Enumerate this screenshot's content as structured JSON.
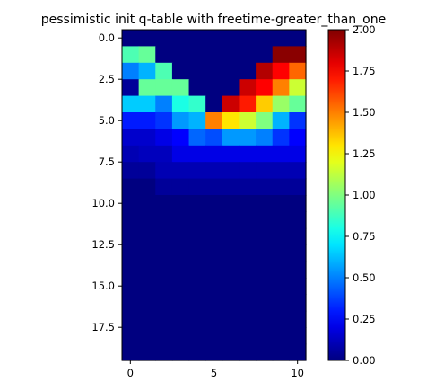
{
  "chart_data": {
    "type": "heatmap",
    "title": "pessimistic init q-table with freetime-greater_than_one",
    "xlabel": "",
    "ylabel": "",
    "colormap": "jet",
    "vmin": 0.0,
    "vmax": 2.0,
    "n_rows": 20,
    "n_cols": 11,
    "x_ticks": [
      0,
      5,
      10
    ],
    "x_tick_labels": [
      "0",
      "5",
      "10"
    ],
    "y_ticks": [
      0.0,
      2.5,
      5.0,
      7.5,
      10.0,
      12.5,
      15.0,
      17.5
    ],
    "y_tick_labels": [
      "0.0",
      "2.5",
      "5.0",
      "7.5",
      "10.0",
      "12.5",
      "15.0",
      "17.5"
    ],
    "colorbar_ticks": [
      0.0,
      0.25,
      0.5,
      0.75,
      1.0,
      1.25,
      1.5,
      1.75,
      2.0
    ],
    "colorbar_tick_labels": [
      "0.00",
      "0.25",
      "0.50",
      "0.75",
      "1.00",
      "1.25",
      "1.50",
      "1.75",
      "2.00"
    ],
    "values": [
      [
        0,
        0,
        0,
        0,
        0,
        0,
        0,
        0,
        0,
        0,
        0
      ],
      [
        0.9,
        0.95,
        0,
        0,
        0,
        0,
        0,
        0,
        0,
        1.98,
        1.98
      ],
      [
        0.5,
        0.6,
        0.9,
        0,
        0,
        0,
        0,
        0,
        1.9,
        1.75,
        1.55
      ],
      [
        0.05,
        0.95,
        0.95,
        0.95,
        0,
        0,
        0,
        1.85,
        1.75,
        1.5,
        1.15
      ],
      [
        0.65,
        0.65,
        0.5,
        0.8,
        0.85,
        0,
        1.85,
        1.7,
        1.35,
        1.05,
        0.95
      ],
      [
        0.3,
        0.3,
        0.35,
        0.55,
        0.6,
        1.5,
        1.3,
        1.15,
        1.0,
        0.6,
        0.35
      ],
      [
        0.15,
        0.15,
        0.2,
        0.25,
        0.45,
        0.4,
        0.55,
        0.55,
        0.5,
        0.35,
        0.25
      ],
      [
        0.1,
        0.12,
        0.12,
        0.2,
        0.2,
        0.2,
        0.2,
        0.2,
        0.2,
        0.2,
        0.2
      ],
      [
        0.05,
        0.05,
        0.1,
        0.1,
        0.1,
        0.1,
        0.1,
        0.1,
        0.1,
        0.1,
        0.1
      ],
      [
        0,
        0,
        0.05,
        0.05,
        0.05,
        0.05,
        0.05,
        0.05,
        0.05,
        0.05,
        0.05
      ],
      [
        0,
        0,
        0,
        0,
        0,
        0,
        0,
        0,
        0,
        0,
        0
      ],
      [
        0,
        0,
        0,
        0,
        0,
        0,
        0,
        0,
        0,
        0,
        0
      ],
      [
        0,
        0,
        0,
        0,
        0,
        0,
        0,
        0,
        0,
        0,
        0
      ],
      [
        0,
        0,
        0,
        0,
        0,
        0,
        0,
        0,
        0,
        0,
        0
      ],
      [
        0,
        0,
        0,
        0,
        0,
        0,
        0,
        0,
        0,
        0,
        0
      ],
      [
        0,
        0,
        0,
        0,
        0,
        0,
        0,
        0,
        0,
        0,
        0
      ],
      [
        0,
        0,
        0,
        0,
        0,
        0,
        0,
        0,
        0,
        0,
        0
      ],
      [
        0,
        0,
        0,
        0,
        0,
        0,
        0,
        0,
        0,
        0,
        0
      ],
      [
        0,
        0,
        0,
        0,
        0,
        0,
        0,
        0,
        0,
        0,
        0
      ],
      [
        0,
        0,
        0,
        0,
        0,
        0,
        0,
        0,
        0,
        0,
        0
      ]
    ]
  }
}
